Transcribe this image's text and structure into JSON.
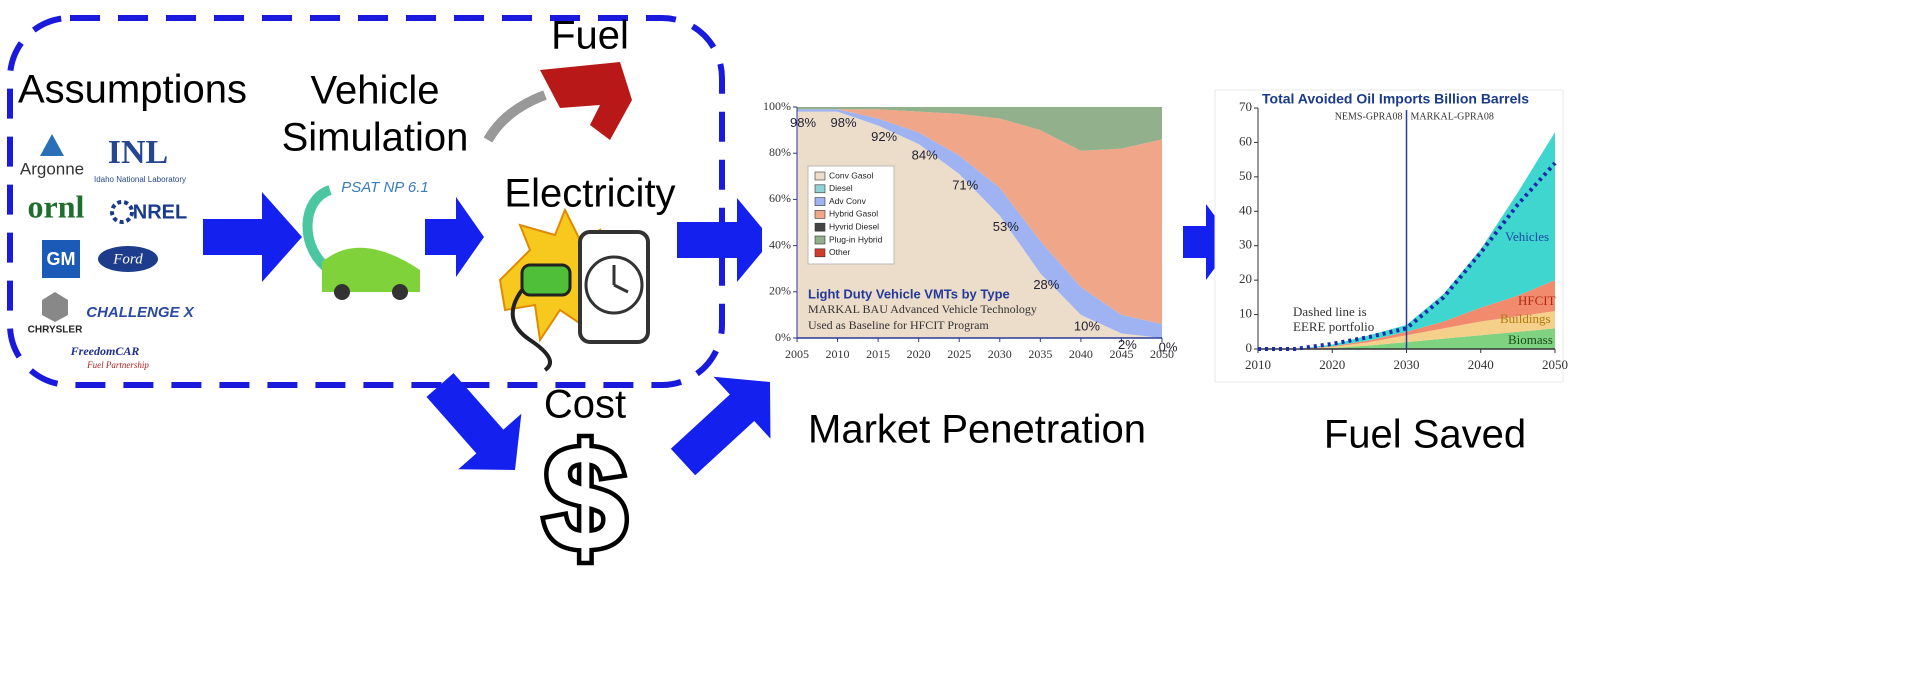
{
  "labels": {
    "assumptions": "Assumptions",
    "vehicle": "Vehicle",
    "simulation": "Simulation",
    "fuel": "Fuel",
    "electricity": "Electricity",
    "cost": "Cost",
    "cost_icon": "$",
    "market": "Market Penetration",
    "fuel_saved": "Fuel Saved"
  },
  "logos": {
    "argonne": "Argonne",
    "inl": "INL",
    "inl_sub": "Idaho National Laboratory",
    "ornl": "ornl",
    "nrel": "NREL",
    "gm": "GM",
    "ford": "Ford",
    "chrysler": "CHRYSLER",
    "challenge": "CHALLENGE X",
    "freedomcar": "FreedomCAR",
    "fuel_partnership": "Fuel Partnership",
    "psat": "PSAT NP 6.1"
  },
  "market_chart": {
    "type": "area",
    "title": "Light Duty Vehicle VMTs by Type",
    "subtitle": [
      "MARKAL BAU Advanced Vehicle Technology",
      "Used as Baseline for HFCIT Program"
    ],
    "x": [
      2005,
      2010,
      2015,
      2020,
      2025,
      2030,
      2035,
      2040,
      2045,
      2050
    ],
    "xlim": [
      2005,
      2050
    ],
    "xticks": [
      2005,
      2010,
      2015,
      2020,
      2025,
      2030,
      2035,
      2040,
      2045,
      2050
    ],
    "ylim": [
      0,
      100
    ],
    "yticks": [
      {
        "value": 0,
        "label": "0%"
      },
      {
        "value": 20,
        "label": "20%"
      },
      {
        "value": 40,
        "label": "40%"
      },
      {
        "value": 60,
        "label": "60%"
      },
      {
        "value": 80,
        "label": "80%"
      },
      {
        "value": 100,
        "label": "100%"
      }
    ],
    "series": [
      {
        "name": "Conv Gasol",
        "color": "#ecdcca",
        "values": [
          98,
          98,
          92,
          84,
          71,
          53,
          28,
          10,
          2,
          0
        ],
        "value_labels": [
          "98%",
          "98%",
          "92%",
          "84%",
          "71%",
          "53%",
          "28%",
          "10%",
          "2%",
          "0%"
        ]
      },
      {
        "name": "Diesel",
        "color": "#8fd3d6"
      },
      {
        "name": "Adv Conv",
        "color": "#9fb3f2",
        "values": [
          1,
          1,
          3,
          5,
          8,
          12,
          14,
          12,
          8,
          6
        ]
      },
      {
        "name": "Hybrid Gasol",
        "color": "#f0a688",
        "values": [
          0,
          0,
          4,
          9,
          18,
          30,
          48,
          59,
          72,
          80
        ]
      },
      {
        "name": "Hyvrid Diesel",
        "color": "#444444"
      },
      {
        "name": "Plug-in Hybrid",
        "color": "#93b08c",
        "values": [
          1,
          1,
          1,
          2,
          3,
          5,
          10,
          19,
          18,
          14
        ]
      },
      {
        "name": "Other",
        "color": "#d23a2a"
      }
    ]
  },
  "fuel_chart": {
    "type": "area",
    "title": "Total Avoided Oil Imports Billion Barrels",
    "annotations": [
      "NEMS-GPRA08",
      "MARKAL-GPRA08"
    ],
    "note": [
      "Dashed line is",
      "EERE portfolio"
    ],
    "x": [
      2010,
      2015,
      2020,
      2025,
      2030,
      2035,
      2040,
      2045,
      2050
    ],
    "xlim": [
      2010,
      2050
    ],
    "xticks": [
      2010,
      2020,
      2030,
      2040,
      2050
    ],
    "ylim": [
      0,
      70
    ],
    "yticks": [
      0,
      10,
      20,
      30,
      40,
      50,
      60,
      70
    ],
    "divider": 2030,
    "series": [
      {
        "name": "Biomass",
        "color": "#7fd27f",
        "values": [
          0,
          0,
          0.3,
          1,
          2,
          3,
          4,
          5,
          6
        ]
      },
      {
        "name": "Buildings",
        "color": "#f5d08a",
        "values": [
          0,
          0,
          0.3,
          1,
          2,
          3,
          4,
          4.5,
          5
        ]
      },
      {
        "name": "HFCIT",
        "color": "#f28b6e",
        "values": [
          0,
          0,
          0.2,
          0.5,
          1,
          2,
          4,
          6,
          9
        ]
      },
      {
        "name": "Vehicles",
        "color": "#3fd6cf",
        "values": [
          0,
          0,
          0.5,
          1.5,
          2,
          8,
          17,
          30,
          43
        ]
      }
    ],
    "line": {
      "color": "#1a2aa8",
      "values": [
        0,
        0,
        1.5,
        3.5,
        6,
        15,
        28,
        42,
        54
      ]
    }
  }
}
